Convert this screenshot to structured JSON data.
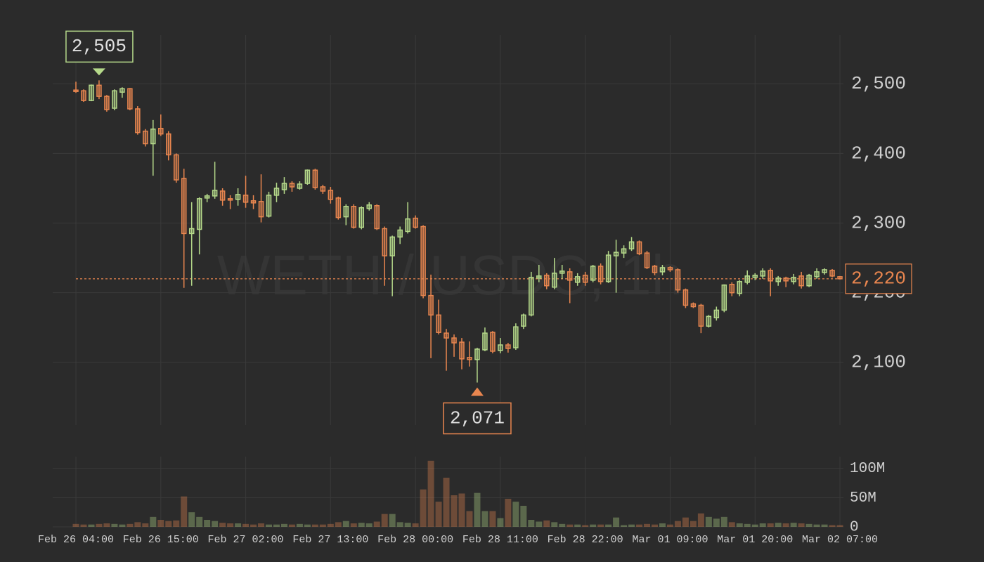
{
  "chart_data": {
    "type": "candlestick",
    "watermark": "WETH / USDC, 1h",
    "categories": [
      "Feb 26 04:00",
      null,
      null,
      null,
      null,
      null,
      null,
      null,
      null,
      null,
      null,
      "Feb 26 15:00",
      null,
      null,
      null,
      null,
      null,
      null,
      null,
      null,
      null,
      null,
      "Feb 27 02:00",
      null,
      null,
      null,
      null,
      null,
      null,
      null,
      null,
      null,
      null,
      "Feb 27 13:00",
      null,
      null,
      null,
      null,
      null,
      null,
      null,
      null,
      null,
      null,
      "Feb 28 00:00",
      null,
      null,
      null,
      null,
      null,
      null,
      null,
      null,
      null,
      null,
      "Feb 28 11:00",
      null,
      null,
      null,
      null,
      null,
      null,
      null,
      null,
      null,
      null,
      "Feb 28 22:00",
      null,
      null,
      null,
      null,
      null,
      null,
      null,
      null,
      null,
      null,
      "Mar 01 09:00",
      null,
      null,
      null,
      null,
      null,
      null,
      null,
      null,
      null,
      null,
      "Mar 01 20:00",
      null,
      null,
      null,
      null,
      null,
      null,
      null,
      null,
      null,
      null,
      "Mar 02 07:00"
    ],
    "open": [
      2491,
      2490,
      2476,
      2498,
      2482,
      2465,
      2488,
      2493,
      2464,
      2432,
      2414,
      2436,
      2428,
      2398,
      2364,
      2285,
      2291,
      2336,
      2339,
      2346,
      2335,
      2334,
      2340,
      2332,
      2331,
      2310,
      2340,
      2348,
      2357,
      2350,
      2357,
      2376,
      2352,
      2347,
      2336,
      2309,
      2324,
      2294,
      2321,
      2325,
      2292,
      2253,
      2280,
      2288,
      2307,
      2295,
      2196,
      2168,
      2142,
      2135,
      2129,
      2107,
      2104,
      2118,
      2143,
      2117,
      2125,
      2121,
      2152,
      2168,
      2221,
      2225,
      2208,
      2228,
      2230,
      2215,
      2225,
      2218,
      2238,
      2216,
      2253,
      2257,
      2263,
      2273,
      2257,
      2238,
      2230,
      2236,
      2233,
      2204,
      2184,
      2182,
      2152,
      2164,
      2175,
      2212,
      2199,
      2215,
      2222,
      2224,
      2232,
      2216,
      2221,
      2216,
      2224,
      2210,
      2223,
      2229,
      2232,
      2223
    ],
    "high": [
      2503,
      2492,
      2499,
      2505,
      2484,
      2492,
      2495,
      2494,
      2468,
      2435,
      2448,
      2456,
      2432,
      2400,
      2378,
      2330,
      2337,
      2342,
      2388,
      2350,
      2340,
      2350,
      2368,
      2340,
      2370,
      2345,
      2358,
      2366,
      2360,
      2360,
      2377,
      2378,
      2355,
      2352,
      2338,
      2327,
      2327,
      2324,
      2330,
      2327,
      2295,
      2282,
      2295,
      2330,
      2311,
      2297,
      2226,
      2190,
      2148,
      2140,
      2135,
      2130,
      2121,
      2150,
      2145,
      2135,
      2128,
      2156,
      2170,
      2230,
      2240,
      2228,
      2250,
      2240,
      2235,
      2228,
      2230,
      2240,
      2242,
      2260,
      2276,
      2268,
      2280,
      2275,
      2260,
      2240,
      2240,
      2238,
      2235,
      2206,
      2186,
      2184,
      2168,
      2180,
      2212,
      2215,
      2218,
      2232,
      2228,
      2235,
      2235,
      2224,
      2223,
      2227,
      2230,
      2227,
      2235,
      2235,
      2234,
      2224
    ],
    "low": [
      2487,
      2474,
      2475,
      2478,
      2460,
      2462,
      2480,
      2462,
      2427,
      2410,
      2368,
      2425,
      2390,
      2358,
      2207,
      2210,
      2255,
      2330,
      2335,
      2325,
      2320,
      2325,
      2322,
      2320,
      2301,
      2308,
      2330,
      2342,
      2345,
      2348,
      2355,
      2348,
      2342,
      2328,
      2305,
      2297,
      2292,
      2291,
      2318,
      2290,
      2210,
      2195,
      2270,
      2285,
      2292,
      2192,
      2106,
      2140,
      2088,
      2108,
      2090,
      2094,
      2071,
      2116,
      2113,
      2113,
      2114,
      2118,
      2148,
      2166,
      2215,
      2205,
      2205,
      2220,
      2185,
      2210,
      2210,
      2215,
      2212,
      2214,
      2200,
      2250,
      2260,
      2254,
      2234,
      2225,
      2225,
      2230,
      2200,
      2178,
      2178,
      2142,
      2150,
      2160,
      2172,
      2195,
      2195,
      2212,
      2218,
      2220,
      2195,
      2210,
      2208,
      2212,
      2206,
      2208,
      2220,
      2226,
      2222,
      2219
    ],
    "close": [
      2489,
      2476,
      2498,
      2482,
      2463,
      2490,
      2493,
      2464,
      2430,
      2414,
      2435,
      2428,
      2398,
      2362,
      2285,
      2292,
      2335,
      2339,
      2347,
      2333,
      2333,
      2341,
      2330,
      2329,
      2309,
      2340,
      2350,
      2357,
      2352,
      2356,
      2376,
      2351,
      2346,
      2334,
      2308,
      2324,
      2294,
      2322,
      2326,
      2292,
      2253,
      2280,
      2290,
      2306,
      2294,
      2196,
      2168,
      2143,
      2135,
      2128,
      2105,
      2104,
      2119,
      2142,
      2116,
      2125,
      2120,
      2151,
      2168,
      2222,
      2224,
      2210,
      2228,
      2231,
      2218,
      2223,
      2215,
      2238,
      2216,
      2254,
      2258,
      2263,
      2273,
      2256,
      2236,
      2229,
      2236,
      2233,
      2204,
      2182,
      2180,
      2152,
      2166,
      2175,
      2211,
      2200,
      2216,
      2224,
      2225,
      2231,
      2217,
      2221,
      2217,
      2222,
      2210,
      2225,
      2230,
      2233,
      2224,
      2220
    ],
    "volume": [
      5,
      4,
      4,
      5,
      6,
      5,
      4,
      5,
      8,
      6,
      17,
      12,
      10,
      11,
      52,
      25,
      17,
      12,
      10,
      7,
      6,
      6,
      5,
      4,
      6,
      4,
      4,
      5,
      4,
      5,
      4,
      4,
      4,
      5,
      8,
      10,
      6,
      7,
      6,
      9,
      22,
      22,
      8,
      7,
      6,
      64,
      113,
      43,
      84,
      54,
      57,
      27,
      58,
      27,
      27,
      15,
      48,
      43,
      36,
      12,
      9,
      11,
      8,
      5,
      4,
      4,
      3,
      4,
      4,
      4,
      16,
      3,
      4,
      4,
      5,
      4,
      6,
      4,
      10,
      16,
      10,
      23,
      17,
      14,
      17,
      8,
      6,
      5,
      4,
      6,
      6,
      7,
      6,
      7,
      6,
      5,
      4,
      4,
      3,
      3
    ],
    "up_color": "#b5d98a",
    "down_color": "#e9864f",
    "ylim": [
      2010,
      2580
    ],
    "yticks": [
      {
        "value": 2100,
        "label": "2,100"
      },
      {
        "value": 2200,
        "label": "2,200"
      },
      {
        "value": 2300,
        "label": "2,300"
      },
      {
        "value": 2400,
        "label": "2,400"
      },
      {
        "value": 2500,
        "label": "2,500"
      }
    ],
    "volume_lim": [
      0,
      120
    ],
    "volume_ticks": [
      {
        "value": 0,
        "label": "0"
      },
      {
        "value": 50,
        "label": "50M"
      },
      {
        "value": 100,
        "label": "100M"
      }
    ],
    "high_annotation": {
      "value": 2505,
      "label": "2,505"
    },
    "low_annotation": {
      "value": 2071,
      "label": "2,071"
    },
    "last_price": {
      "value": 2220,
      "label": "2,220"
    },
    "grid": true
  }
}
